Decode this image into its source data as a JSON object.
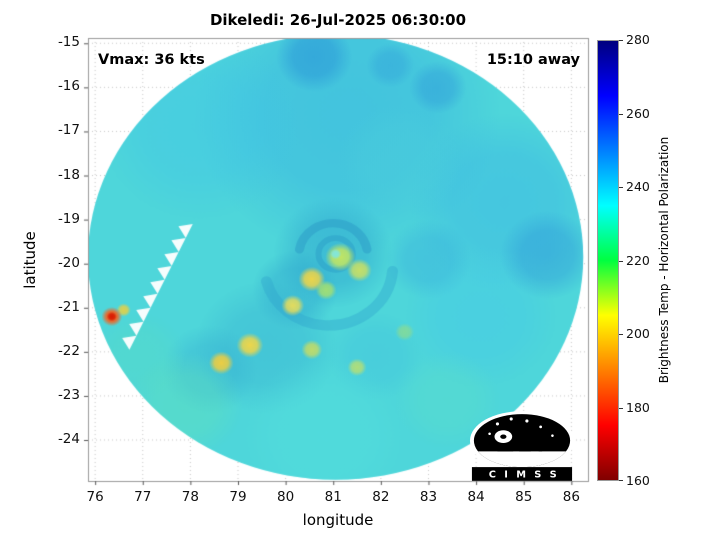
{
  "chart_data": {
    "type": "heatmap",
    "title": "Dikeledi: 26-Jul-2025 06:30:00",
    "xlabel": "longitude",
    "ylabel": "latitude",
    "xlim": [
      75.85,
      86.35
    ],
    "ylim": [
      -24.93,
      -14.88
    ],
    "xticks": [
      76,
      77,
      78,
      79,
      80,
      81,
      82,
      83,
      84,
      85,
      86
    ],
    "yticks": [
      -15,
      -16,
      -17,
      -18,
      -19,
      -20,
      -21,
      -22,
      -23,
      -24
    ],
    "grid": "dotted",
    "annotations": [
      {
        "text": "Vmax: 36 kts",
        "position": "top-left"
      },
      {
        "text": "15:10 away",
        "position": "top-right"
      }
    ],
    "colorbar": {
      "label": "Brightness Temp - Horizontal Polarization",
      "min": 160,
      "max": 280,
      "ticks": [
        280,
        260,
        240,
        220,
        200,
        180,
        160
      ],
      "colormap": "jet-reversed",
      "gradient": [
        "#00007f",
        "#0000ff",
        "#00ffff",
        "#00ff40",
        "#ffff00",
        "#ff0000",
        "#800000"
      ],
      "stops": [
        0,
        0.125,
        0.375,
        0.5,
        0.625,
        0.875,
        1
      ]
    },
    "swath": {
      "center_lon": 81.05,
      "center_lat": -19.85,
      "radius_lon_deg": 5.2,
      "radius_lat_deg": 5.05,
      "base_color": "#4ed6da",
      "base_value_K": 238
    },
    "features": [
      {
        "x": 81.3,
        "y": -16.6,
        "r": 3.2,
        "c": "#38b2e2",
        "a": 0.5
      },
      {
        "x": 78.2,
        "y": -16.9,
        "r": 2.1,
        "c": "#40c4e8",
        "a": 0.4
      },
      {
        "x": 84.6,
        "y": -18.6,
        "r": 2.0,
        "c": "#3ab4e6",
        "a": 0.45
      },
      {
        "x": 84.1,
        "y": -21.2,
        "r": 1.6,
        "c": "#44c8ea",
        "a": 0.4
      },
      {
        "x": 80.6,
        "y": -15.3,
        "r": 0.8,
        "c": "#2892d8",
        "a": 0.55
      },
      {
        "x": 83.2,
        "y": -16.0,
        "r": 0.6,
        "c": "#2f9cda",
        "a": 0.5
      },
      {
        "x": 82.2,
        "y": -15.5,
        "r": 0.5,
        "c": "#2f9cda",
        "a": 0.4
      },
      {
        "x": 85.5,
        "y": -19.8,
        "r": 1.0,
        "c": "#2f9ada",
        "a": 0.5
      },
      {
        "x": 83.0,
        "y": -19.9,
        "r": 0.9,
        "c": "#35aadf",
        "a": 0.4
      },
      {
        "x": 82.4,
        "y": -17.7,
        "r": 1.3,
        "c": "#4ccfdc",
        "a": 0.4
      },
      {
        "x": 81.0,
        "y": -19.75,
        "r": 1.25,
        "c": "#2da4ce",
        "a": 0.5
      },
      {
        "x": 80.2,
        "y": -20.6,
        "r": 0.9,
        "c": "#2da4ce",
        "a": 0.45
      },
      {
        "x": 79.6,
        "y": -21.9,
        "r": 1.5,
        "c": "#35aed2",
        "a": 0.4
      },
      {
        "x": 78.4,
        "y": -22.4,
        "r": 1.0,
        "c": "#35aed2",
        "a": 0.4
      },
      {
        "x": 81.9,
        "y": -22.1,
        "r": 1.0,
        "c": "#3fc0de",
        "a": 0.35
      },
      {
        "x": 77.9,
        "y": -23.2,
        "r": 1.2,
        "c": "#62e2b8",
        "a": 0.4
      },
      {
        "x": 76.9,
        "y": -22.1,
        "r": 1.0,
        "c": "#58dcc0",
        "a": 0.35
      },
      {
        "x": 80.8,
        "y": -23.9,
        "r": 1.8,
        "c": "#54e0de",
        "a": 0.45
      },
      {
        "x": 83.4,
        "y": -23.1,
        "r": 1.1,
        "c": "#5ee0c8",
        "a": 0.35
      }
    ],
    "arcs": [
      {
        "x": 81.0,
        "y": -19.8,
        "r": 0.72,
        "a1": 190,
        "a2": 350,
        "w": 9,
        "c": "#2b9cc8",
        "al": 0.5
      },
      {
        "x": 80.9,
        "y": -20.05,
        "r": 1.35,
        "a1": 5,
        "a2": 165,
        "w": 11,
        "c": "#2fa6ce",
        "al": 0.4
      },
      {
        "x": 81.05,
        "y": -19.78,
        "r": 0.36,
        "a1": 0,
        "a2": 360,
        "w": 6,
        "c": "#2b9cc8",
        "al": 0.45
      }
    ],
    "spots": [
      {
        "x": 81.15,
        "y": -19.85,
        "r": 0.32,
        "c": "#d8ec50",
        "a": 0.85
      },
      {
        "x": 80.55,
        "y": -20.35,
        "r": 0.28,
        "c": "#ffd83c",
        "a": 0.9
      },
      {
        "x": 81.55,
        "y": -20.15,
        "r": 0.26,
        "c": "#e6e64e",
        "a": 0.8
      },
      {
        "x": 80.15,
        "y": -20.95,
        "r": 0.24,
        "c": "#ffe14a",
        "a": 0.85
      },
      {
        "x": 80.85,
        "y": -20.6,
        "r": 0.22,
        "c": "#bfe858",
        "a": 0.75
      },
      {
        "x": 79.25,
        "y": -21.85,
        "r": 0.28,
        "c": "#ffd83c",
        "a": 0.9
      },
      {
        "x": 78.65,
        "y": -22.25,
        "r": 0.26,
        "c": "#ffcf33",
        "a": 0.9
      },
      {
        "x": 80.55,
        "y": -21.95,
        "r": 0.22,
        "c": "#e4e04a",
        "a": 0.75
      },
      {
        "x": 81.5,
        "y": -22.35,
        "r": 0.2,
        "c": "#d8e455",
        "a": 0.7
      },
      {
        "x": 82.5,
        "y": -21.55,
        "r": 0.2,
        "c": "#a8e070",
        "a": 0.55
      },
      {
        "x": 76.6,
        "y": -21.05,
        "r": 0.15,
        "c": "#ffd02e",
        "a": 0.8
      },
      {
        "x": 76.35,
        "y": -21.2,
        "r": 0.22,
        "c": "#ff5a14",
        "a": 0.95
      },
      {
        "x": 76.35,
        "y": -21.2,
        "r": 0.11,
        "c": "#d81800",
        "a": 0.95
      },
      {
        "x": 81.05,
        "y": -19.78,
        "r": 0.12,
        "c": "#7de8e8",
        "a": 0.9
      }
    ],
    "notch": {
      "from": [
        78.05,
        -19.1
      ],
      "to": [
        76.72,
        -21.95
      ],
      "teeth": 9,
      "amplitude_deg": 0.25
    },
    "logo_text": "C I M S S"
  }
}
